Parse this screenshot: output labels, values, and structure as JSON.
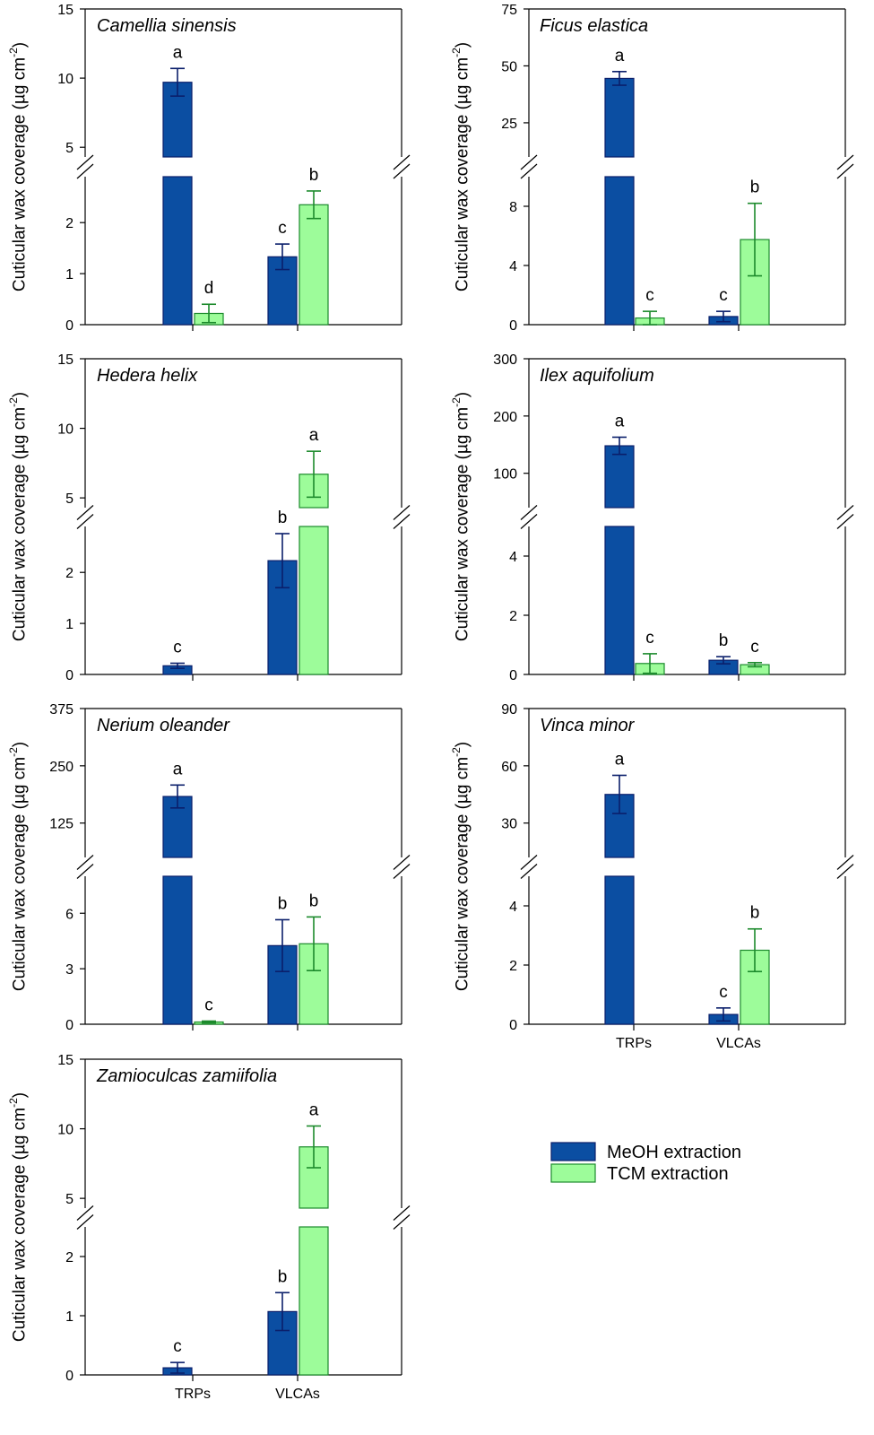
{
  "colors": {
    "meoh_fill": "#0b4ea2",
    "meoh_stroke": "#0b1f6b",
    "tcm_fill": "#9dfc9a",
    "tcm_stroke": "#1c8a2c",
    "axis": "#000000"
  },
  "legend": {
    "items": [
      {
        "label": "MeOH extraction",
        "series": "meoh"
      },
      {
        "label": "TCM extraction",
        "series": "tcm"
      }
    ]
  },
  "chart_data": [
    {
      "type": "bar",
      "title": "Camellia sinensis",
      "ylabel": "Cuticular wax coverage (µg cm",
      "ylabel_sup": "-2",
      "categories": [
        "TRPs",
        "VLCAs"
      ],
      "show_category_labels": false,
      "broken_axis": true,
      "lower_ylim": [
        0,
        2.9
      ],
      "lower_ticks": [
        0,
        1,
        2
      ],
      "upper_ylim": [
        4.3,
        15
      ],
      "upper_ticks": [
        5,
        10,
        15
      ],
      "series": [
        {
          "name": "MeOH extraction",
          "key": "meoh",
          "values": [
            9.7,
            1.33
          ],
          "errors": [
            1.0,
            0.25
          ],
          "letters": [
            "a",
            "c"
          ]
        },
        {
          "name": "TCM extraction",
          "key": "tcm",
          "values": [
            0.22,
            2.35
          ],
          "errors": [
            0.18,
            0.27
          ],
          "letters": [
            "d",
            "b"
          ]
        }
      ]
    },
    {
      "type": "bar",
      "title": "Ficus elastica",
      "ylabel": "Cuticular wax coverage (µg cm",
      "ylabel_sup": "-2",
      "categories": [
        "TRPs",
        "VLCAs"
      ],
      "show_category_labels": false,
      "broken_axis": true,
      "lower_ylim": [
        0,
        10
      ],
      "lower_ticks": [
        0,
        4,
        8
      ],
      "upper_ylim": [
        10,
        75
      ],
      "upper_ticks": [
        25,
        50,
        75
      ],
      "series": [
        {
          "name": "MeOH extraction",
          "key": "meoh",
          "values": [
            44.5,
            0.55
          ],
          "errors": [
            3.0,
            0.35
          ],
          "letters": [
            "a",
            "c"
          ]
        },
        {
          "name": "TCM extraction",
          "key": "tcm",
          "values": [
            0.45,
            5.75
          ],
          "errors": [
            0.45,
            2.45
          ],
          "letters": [
            "c",
            "b"
          ]
        }
      ]
    },
    {
      "type": "bar",
      "title": "Hedera helix",
      "ylabel": "Cuticular wax coverage (µg cm",
      "ylabel_sup": "-2",
      "categories": [
        "TRPs",
        "VLCAs"
      ],
      "show_category_labels": false,
      "broken_axis": true,
      "lower_ylim": [
        0,
        2.9
      ],
      "lower_ticks": [
        0,
        1,
        2
      ],
      "upper_ylim": [
        4.3,
        15
      ],
      "upper_ticks": [
        5,
        10,
        15
      ],
      "series": [
        {
          "name": "MeOH extraction",
          "key": "meoh",
          "values": [
            0.17,
            2.23
          ],
          "errors": [
            0.05,
            0.53
          ],
          "letters": [
            "c",
            "b"
          ]
        },
        {
          "name": "TCM extraction",
          "key": "tcm",
          "values": [
            0,
            6.7
          ],
          "errors": [
            0,
            1.65
          ],
          "letters": [
            "",
            "a"
          ]
        }
      ]
    },
    {
      "type": "bar",
      "title": "Ilex aquifolium",
      "ylabel": "Cuticular wax coverage (µg cm",
      "ylabel_sup": "-2",
      "categories": [
        "TRPs",
        "VLCAs"
      ],
      "show_category_labels": false,
      "broken_axis": true,
      "lower_ylim": [
        0,
        5
      ],
      "lower_ticks": [
        0,
        2,
        4
      ],
      "upper_ylim": [
        40,
        300
      ],
      "upper_ticks": [
        100,
        200,
        300
      ],
      "series": [
        {
          "name": "MeOH extraction",
          "key": "meoh",
          "values": [
            148,
            0.48
          ],
          "errors": [
            15,
            0.12
          ],
          "letters": [
            "a",
            "b"
          ]
        },
        {
          "name": "TCM extraction",
          "key": "tcm",
          "values": [
            0.37,
            0.33
          ],
          "errors": [
            0.33,
            0.07
          ],
          "letters": [
            "c",
            "c"
          ]
        }
      ]
    },
    {
      "type": "bar",
      "title": "Nerium oleander",
      "ylabel": "Cuticular wax coverage (µg cm",
      "ylabel_sup": "-2",
      "categories": [
        "TRPs",
        "VLCAs"
      ],
      "show_category_labels": false,
      "broken_axis": true,
      "lower_ylim": [
        0,
        8
      ],
      "lower_ticks": [
        0,
        3,
        6
      ],
      "upper_ylim": [
        50,
        375
      ],
      "upper_ticks": [
        125,
        250,
        375
      ],
      "series": [
        {
          "name": "MeOH extraction",
          "key": "meoh",
          "values": [
            183,
            4.25
          ],
          "errors": [
            25,
            1.4
          ],
          "letters": [
            "a",
            "b"
          ]
        },
        {
          "name": "TCM extraction",
          "key": "tcm",
          "values": [
            0.12,
            4.35
          ],
          "errors": [
            0.05,
            1.45
          ],
          "letters": [
            "c",
            "b"
          ]
        }
      ]
    },
    {
      "type": "bar",
      "title": "Vinca minor",
      "ylabel": "Cuticular wax coverage (µg cm",
      "ylabel_sup": "-2",
      "categories": [
        "TRPs",
        "VLCAs"
      ],
      "show_category_labels": true,
      "broken_axis": true,
      "lower_ylim": [
        0,
        5
      ],
      "lower_ticks": [
        0,
        2,
        4
      ],
      "upper_ylim": [
        12,
        90
      ],
      "upper_ticks": [
        30,
        60,
        90
      ],
      "series": [
        {
          "name": "MeOH extraction",
          "key": "meoh",
          "values": [
            45,
            0.33
          ],
          "errors": [
            10,
            0.22
          ],
          "letters": [
            "a",
            "c"
          ]
        },
        {
          "name": "TCM extraction",
          "key": "tcm",
          "values": [
            0,
            2.5
          ],
          "errors": [
            0,
            0.72
          ],
          "letters": [
            "",
            "b"
          ]
        }
      ]
    },
    {
      "type": "bar",
      "title": "Zamioculcas zamiifolia",
      "ylabel": "Cuticular wax coverage (µg cm",
      "ylabel_sup": "-2",
      "categories": [
        "TRPs",
        "VLCAs"
      ],
      "show_category_labels": true,
      "broken_axis": true,
      "lower_ylim": [
        0,
        2.5
      ],
      "lower_ticks": [
        0,
        1,
        2
      ],
      "upper_ylim": [
        4.3,
        15
      ],
      "upper_ticks": [
        5,
        10,
        15
      ],
      "series": [
        {
          "name": "MeOH extraction",
          "key": "meoh",
          "values": [
            0.12,
            1.07
          ],
          "errors": [
            0.09,
            0.32
          ],
          "letters": [
            "c",
            "b"
          ]
        },
        {
          "name": "TCM extraction",
          "key": "tcm",
          "values": [
            0,
            8.7
          ],
          "errors": [
            0,
            1.5
          ],
          "letters": [
            "",
            "a"
          ]
        }
      ]
    }
  ]
}
